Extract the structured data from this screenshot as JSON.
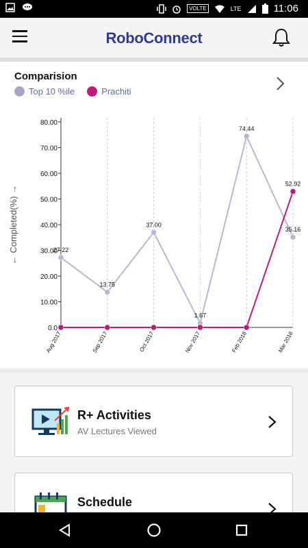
{
  "status_bar": {
    "time": "11:06",
    "network_badge": "VOLTE",
    "lte_label": "LTE",
    "icons": [
      "image-icon",
      "chat-icon",
      "vibrate-icon",
      "alarm-icon",
      "wifi-icon",
      "signal-icon",
      "battery-icon"
    ]
  },
  "app_bar": {
    "title": "RoboConnect",
    "title_color": "#2f3b91"
  },
  "comparison": {
    "title": "Comparision",
    "legend": [
      {
        "label": "Top 10 %ile",
        "color": "#a9a5cb"
      },
      {
        "label": "Prachiti",
        "color": "#c2187d"
      }
    ]
  },
  "chart_data": {
    "type": "line",
    "ylabel": "← Completed(%) →",
    "xlabel": "",
    "categories": [
      "Aug 2017",
      "Sep 2017",
      "Oct 2017",
      "Nov 2017",
      "Feb 2018",
      "Mar 2018"
    ],
    "ylim": [
      0,
      80
    ],
    "yticks": [
      "0.0",
      "10.00",
      "20.00",
      "30.00",
      "40.00",
      "50.00",
      "60.00",
      "70.00",
      "80.00"
    ],
    "grid": "vertical dashed",
    "series": [
      {
        "name": "Top 10 %ile",
        "color": "#b9b6d6",
        "values": [
          27.22,
          13.75,
          37.0,
          1.67,
          74.44,
          35.16
        ],
        "labels": [
          "27.22",
          "13.75",
          "37.00",
          "1.67",
          "74.44",
          "35.16"
        ]
      },
      {
        "name": "Prachiti",
        "color": "#c2187d",
        "values": [
          0,
          0,
          0,
          0,
          0,
          52.92
        ],
        "labels": [
          "",
          "",
          "",
          "",
          "",
          "52.92"
        ]
      }
    ]
  },
  "cards": [
    {
      "title": "R+ Activities",
      "subtitle": "AV Lectures Viewed"
    },
    {
      "title": "Schedule",
      "subtitle": ""
    }
  ]
}
